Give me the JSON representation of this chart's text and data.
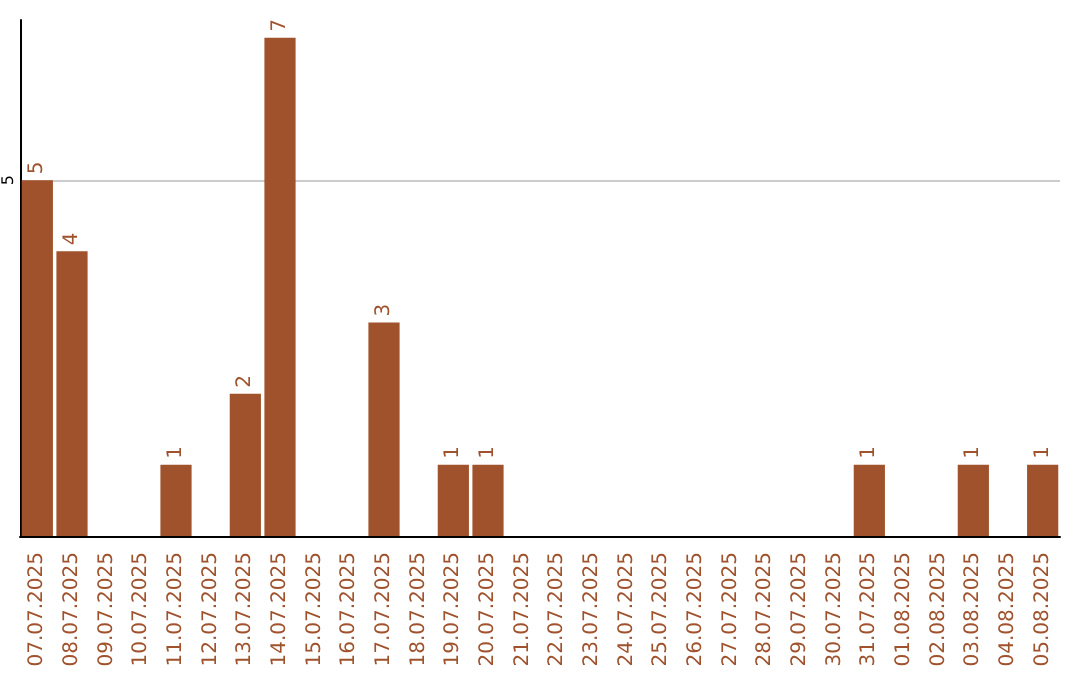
{
  "chart_data": {
    "type": "bar",
    "categories": [
      "07.07.2025",
      "08.07.2025",
      "09.07.2025",
      "10.07.2025",
      "11.07.2025",
      "12.07.2025",
      "13.07.2025",
      "14.07.2025",
      "15.07.2025",
      "16.07.2025",
      "17.07.2025",
      "18.07.2025",
      "19.07.2025",
      "20.07.2025",
      "21.07.2025",
      "22.07.2025",
      "23.07.2025",
      "24.07.2025",
      "25.07.2025",
      "26.07.2025",
      "27.07.2025",
      "28.07.2025",
      "29.07.2025",
      "30.07.2025",
      "31.07.2025",
      "01.08.2025",
      "02.08.2025",
      "03.08.2025",
      "04.08.2025",
      "05.08.2025"
    ],
    "values": [
      5,
      4,
      0,
      0,
      1,
      0,
      2,
      7,
      0,
      0,
      3,
      0,
      1,
      1,
      0,
      0,
      0,
      0,
      0,
      0,
      0,
      0,
      0,
      0,
      1,
      0,
      0,
      1,
      0,
      1
    ],
    "value_labels": [
      "5",
      "4",
      null,
      null,
      "1",
      null,
      "2",
      "7",
      null,
      null,
      "3",
      null,
      "1",
      "1",
      null,
      null,
      null,
      null,
      null,
      null,
      null,
      null,
      null,
      null,
      "1",
      null,
      null,
      "1",
      null,
      "1"
    ],
    "color": "#a0522d",
    "ylim": [
      0,
      7.25
    ],
    "yticks": [
      5
    ],
    "grid": "y"
  }
}
